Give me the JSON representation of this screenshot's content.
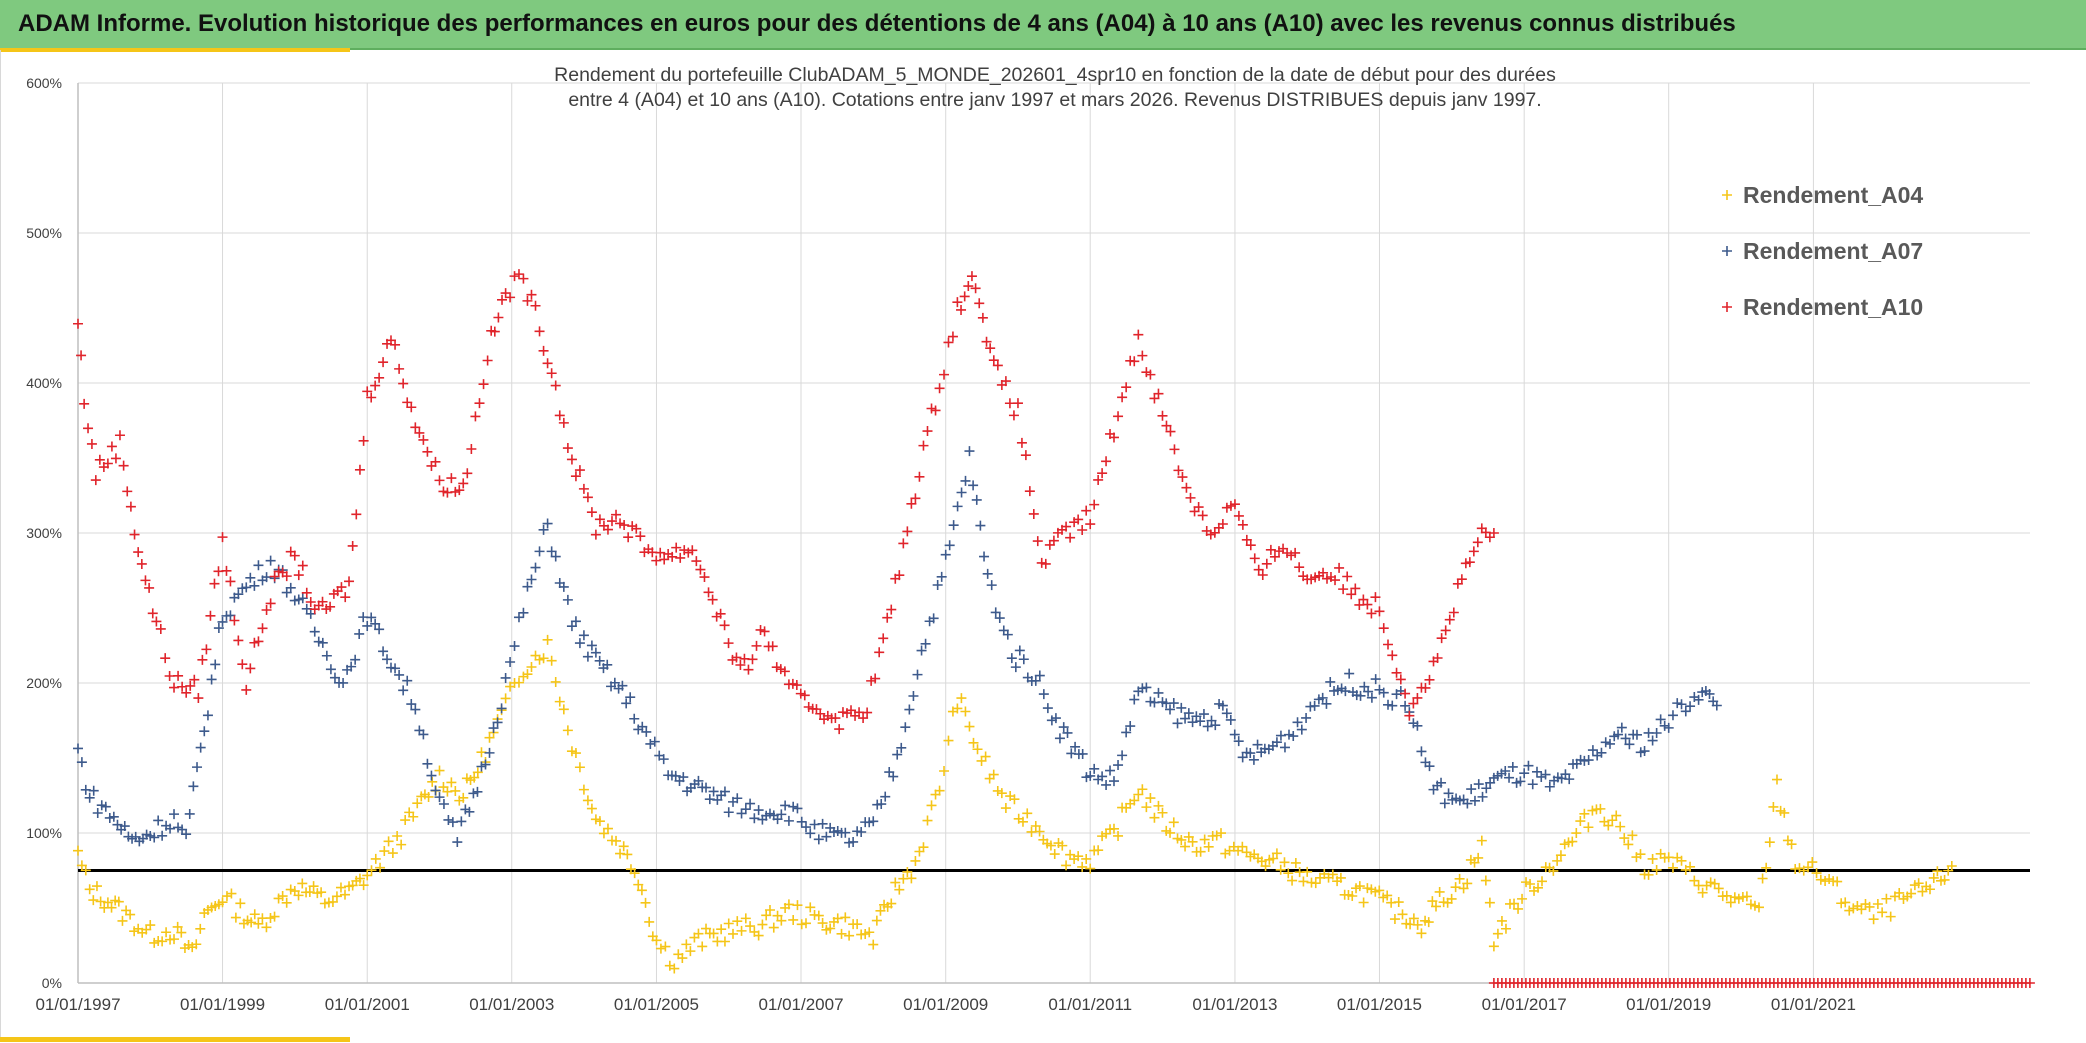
{
  "header": {
    "title": "ADAM Informe. Evolution historique des performances en euros pour des détentions de 4 ans (A04) à 10 ans (A10) avec les revenus connus distribués"
  },
  "colors": {
    "banner": "#7fc97f",
    "accent": "#f5c518",
    "grid": "#d9d9d9",
    "reference_line": "#000000"
  },
  "chart_data": {
    "type": "scatter",
    "marker": "plus",
    "title_lines": [
      "Rendement du portefeuille ClubADAM_5_MONDE_202601_4spr10  en fonction de la date de début pour des durées",
      "entre 4 (A04) et 10 ans (A10). Cotations entre janv 1997 et mars 2026. Revenus DISTRIBUES depuis janv 1997."
    ],
    "xlabel": "",
    "ylabel": "",
    "x_range": [
      "1997-01-01",
      "2023-12-31"
    ],
    "x_ticks": [
      "01/01/1997",
      "01/01/1999",
      "01/01/2001",
      "01/01/2003",
      "01/01/2005",
      "01/01/2007",
      "01/01/2009",
      "01/01/2011",
      "01/01/2013",
      "01/01/2015",
      "01/01/2017",
      "01/01/2019",
      "01/01/2021"
    ],
    "y_range": [
      0,
      600
    ],
    "y_unit": "%",
    "y_ticks": [
      "0%",
      "100%",
      "200%",
      "300%",
      "400%",
      "500%",
      "600%"
    ],
    "grid": true,
    "legend_position": "top-right",
    "reference_line": {
      "y": 75
    },
    "series": [
      {
        "name": "Rendement_A04",
        "color": "#f5c518",
        "points": [
          [
            "1997-01-01",
            85
          ],
          [
            "1997-03-01",
            62
          ],
          [
            "1997-06-01",
            55
          ],
          [
            "1997-09-01",
            45
          ],
          [
            "1998-01-01",
            32
          ],
          [
            "1998-05-01",
            35
          ],
          [
            "1998-08-01",
            18
          ],
          [
            "1998-10-01",
            45
          ],
          [
            "1999-01-01",
            58
          ],
          [
            "1999-04-01",
            48
          ],
          [
            "1999-07-01",
            38
          ],
          [
            "2000-01-01",
            65
          ],
          [
            "2000-06-01",
            55
          ],
          [
            "2000-10-01",
            60
          ],
          [
            "2001-01-01",
            72
          ],
          [
            "2001-06-01",
            95
          ],
          [
            "2001-10-01",
            120
          ],
          [
            "2002-01-01",
            138
          ],
          [
            "2002-05-01",
            125
          ],
          [
            "2002-08-01",
            148
          ],
          [
            "2002-12-01",
            185
          ],
          [
            "2003-03-01",
            210
          ],
          [
            "2003-07-01",
            225
          ],
          [
            "2003-11-01",
            160
          ],
          [
            "2004-03-01",
            110
          ],
          [
            "2004-07-01",
            92
          ],
          [
            "2004-10-01",
            72
          ],
          [
            "2005-01-01",
            28
          ],
          [
            "2005-04-01",
            15
          ],
          [
            "2005-08-01",
            28
          ],
          [
            "2006-01-01",
            35
          ],
          [
            "2006-06-01",
            38
          ],
          [
            "2006-11-01",
            48
          ],
          [
            "2007-04-01",
            42
          ],
          [
            "2007-09-01",
            38
          ],
          [
            "2008-01-01",
            30
          ],
          [
            "2008-04-01",
            58
          ],
          [
            "2008-08-01",
            80
          ],
          [
            "2008-12-01",
            130
          ],
          [
            "2009-03-01",
            190
          ],
          [
            "2009-07-01",
            150
          ],
          [
            "2009-11-01",
            120
          ],
          [
            "2010-04-01",
            105
          ],
          [
            "2010-09-01",
            85
          ],
          [
            "2011-01-01",
            82
          ],
          [
            "2011-05-01",
            100
          ],
          [
            "2011-09-01",
            130
          ],
          [
            "2012-01-01",
            108
          ],
          [
            "2012-06-01",
            92
          ],
          [
            "2012-10-01",
            95
          ],
          [
            "2013-03-01",
            85
          ],
          [
            "2013-08-01",
            80
          ],
          [
            "2014-01-01",
            70
          ],
          [
            "2014-06-01",
            65
          ],
          [
            "2014-11-01",
            60
          ],
          [
            "2015-03-01",
            50
          ],
          [
            "2015-08-01",
            40
          ],
          [
            "2015-11-01",
            55
          ],
          [
            "2016-03-01",
            68
          ],
          [
            "2016-06-01",
            90
          ],
          [
            "2016-08-01",
            30
          ],
          [
            "2016-12-01",
            55
          ],
          [
            "2017-04-01",
            72
          ],
          [
            "2017-09-01",
            95
          ],
          [
            "2018-01-01",
            118
          ],
          [
            "2018-05-01",
            105
          ],
          [
            "2018-09-01",
            78
          ],
          [
            "2019-01-01",
            82
          ],
          [
            "2019-06-01",
            68
          ],
          [
            "2019-12-01",
            55
          ],
          [
            "2020-04-01",
            48
          ],
          [
            "2020-07-01",
            130
          ],
          [
            "2020-10-01",
            80
          ],
          [
            "2021-03-01",
            70
          ],
          [
            "2021-07-01",
            52
          ],
          [
            "2021-11-01",
            45
          ],
          [
            "2022-04-01",
            55
          ],
          [
            "2022-09-01",
            65
          ],
          [
            "2022-12-01",
            78
          ]
        ]
      },
      {
        "name": "Rendement_A07",
        "color": "#3d5a8c",
        "points": [
          [
            "1997-01-01",
            155
          ],
          [
            "1997-03-01",
            125
          ],
          [
            "1997-07-01",
            110
          ],
          [
            "1997-10-01",
            95
          ],
          [
            "1998-01-01",
            100
          ],
          [
            "1998-05-01",
            110
          ],
          [
            "1998-07-01",
            95
          ],
          [
            "1998-10-01",
            170
          ],
          [
            "1999-01-01",
            245
          ],
          [
            "1999-05-01",
            265
          ],
          [
            "1999-09-01",
            280
          ],
          [
            "2000-01-01",
            260
          ],
          [
            "2000-05-01",
            230
          ],
          [
            "2000-09-01",
            200
          ],
          [
            "2001-01-01",
            245
          ],
          [
            "2001-05-01",
            215
          ],
          [
            "2001-09-01",
            185
          ],
          [
            "2002-01-01",
            120
          ],
          [
            "2002-04-01",
            95
          ],
          [
            "2002-08-01",
            140
          ],
          [
            "2002-12-01",
            200
          ],
          [
            "2003-03-01",
            250
          ],
          [
            "2003-07-01",
            305
          ],
          [
            "2003-11-01",
            240
          ],
          [
            "2004-03-01",
            215
          ],
          [
            "2004-08-01",
            190
          ],
          [
            "2004-12-01",
            160
          ],
          [
            "2005-03-01",
            140
          ],
          [
            "2005-08-01",
            130
          ],
          [
            "2006-01-01",
            120
          ],
          [
            "2006-06-01",
            115
          ],
          [
            "2006-11-01",
            115
          ],
          [
            "2007-04-01",
            100
          ],
          [
            "2007-09-01",
            95
          ],
          [
            "2008-01-01",
            105
          ],
          [
            "2008-05-01",
            150
          ],
          [
            "2008-09-01",
            220
          ],
          [
            "2009-01-01",
            280
          ],
          [
            "2009-05-01",
            350
          ],
          [
            "2009-08-01",
            270
          ],
          [
            "2009-12-01",
            220
          ],
          [
            "2010-04-01",
            205
          ],
          [
            "2010-08-01",
            170
          ],
          [
            "2011-01-01",
            140
          ],
          [
            "2011-05-01",
            135
          ],
          [
            "2011-09-01",
            195
          ],
          [
            "2012-01-01",
            185
          ],
          [
            "2012-06-01",
            175
          ],
          [
            "2012-11-01",
            180
          ],
          [
            "2013-03-01",
            150
          ],
          [
            "2013-06-01",
            155
          ],
          [
            "2013-10-01",
            165
          ],
          [
            "2014-03-01",
            190
          ],
          [
            "2014-08-01",
            200
          ],
          [
            "2015-01-01",
            195
          ],
          [
            "2015-06-01",
            185
          ],
          [
            "2015-10-01",
            130
          ],
          [
            "2016-03-01",
            120
          ],
          [
            "2016-08-01",
            135
          ],
          [
            "2017-01-01",
            140
          ],
          [
            "2017-06-01",
            130
          ],
          [
            "2017-11-01",
            145
          ],
          [
            "2018-04-01",
            165
          ],
          [
            "2018-09-01",
            160
          ],
          [
            "2019-01-01",
            175
          ],
          [
            "2019-06-01",
            195
          ],
          [
            "2019-09-01",
            185
          ]
        ]
      },
      {
        "name": "Rendement_A10",
        "color": "#e0242b",
        "points": [
          [
            "1997-01-01",
            440
          ],
          [
            "1997-02-01",
            390
          ],
          [
            "1997-04-01",
            340
          ],
          [
            "1997-08-01",
            360
          ],
          [
            "1997-11-01",
            290
          ],
          [
            "1998-02-01",
            240
          ],
          [
            "1998-05-01",
            200
          ],
          [
            "1998-09-01",
            195
          ],
          [
            "1999-01-01",
            295
          ],
          [
            "1999-05-01",
            200
          ],
          [
            "1999-09-01",
            260
          ],
          [
            "2000-01-01",
            285
          ],
          [
            "2000-05-01",
            245
          ],
          [
            "2000-10-01",
            265
          ],
          [
            "2001-01-01",
            390
          ],
          [
            "2001-05-01",
            430
          ],
          [
            "2001-09-01",
            375
          ],
          [
            "2002-01-01",
            335
          ],
          [
            "2002-05-01",
            330
          ],
          [
            "2002-09-01",
            420
          ],
          [
            "2002-12-01",
            460
          ],
          [
            "2003-03-01",
            470
          ],
          [
            "2003-07-01",
            420
          ],
          [
            "2003-11-01",
            350
          ],
          [
            "2004-03-01",
            305
          ],
          [
            "2004-07-01",
            310
          ],
          [
            "2004-11-01",
            290
          ],
          [
            "2005-03-01",
            285
          ],
          [
            "2005-07-01",
            290
          ],
          [
            "2005-11-01",
            250
          ],
          [
            "2006-03-01",
            205
          ],
          [
            "2006-07-01",
            235
          ],
          [
            "2006-11-01",
            195
          ],
          [
            "2007-03-01",
            185
          ],
          [
            "2007-08-01",
            175
          ],
          [
            "2007-12-01",
            185
          ],
          [
            "2008-04-01",
            250
          ],
          [
            "2008-08-01",
            330
          ],
          [
            "2008-12-01",
            400
          ],
          [
            "2009-03-01",
            450
          ],
          [
            "2009-06-01",
            470
          ],
          [
            "2009-09-01",
            410
          ],
          [
            "2010-01-01",
            380
          ],
          [
            "2010-05-01",
            280
          ],
          [
            "2010-09-01",
            300
          ],
          [
            "2011-01-01",
            310
          ],
          [
            "2011-05-01",
            370
          ],
          [
            "2011-09-01",
            430
          ],
          [
            "2012-01-01",
            380
          ],
          [
            "2012-05-01",
            330
          ],
          [
            "2012-09-01",
            300
          ],
          [
            "2013-01-01",
            320
          ],
          [
            "2013-05-01",
            270
          ],
          [
            "2013-09-01",
            295
          ],
          [
            "2014-01-01",
            270
          ],
          [
            "2014-05-01",
            275
          ],
          [
            "2014-09-01",
            260
          ],
          [
            "2015-01-01",
            250
          ],
          [
            "2015-06-01",
            185
          ],
          [
            "2015-10-01",
            210
          ],
          [
            "2016-02-01",
            260
          ],
          [
            "2016-06-01",
            300
          ],
          [
            "2016-08-01",
            300
          ]
        ]
      }
    ]
  }
}
